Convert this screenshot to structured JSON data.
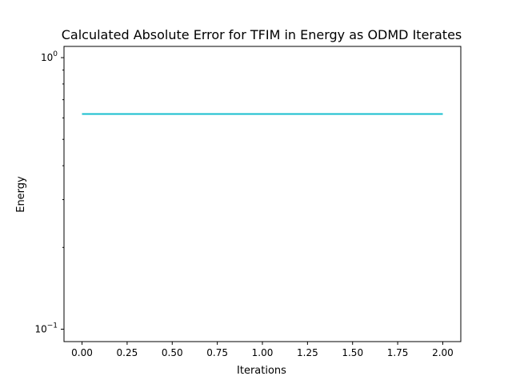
{
  "chart_data": {
    "type": "line",
    "title": "Calculated Absolute Error for TFIM in Energy as ODMD Iterates",
    "xlabel": "Iterations",
    "ylabel": "Energy",
    "xlim": [
      -0.1,
      2.1
    ],
    "ylim": [
      0.09,
      1.1
    ],
    "yscale": "log",
    "grid": false,
    "x_ticks": [
      "0.00",
      "0.25",
      "0.50",
      "0.75",
      "1.00",
      "1.25",
      "1.50",
      "1.75",
      "2.00"
    ],
    "y_ticks": [
      {
        "value": 1.0,
        "base": "10",
        "exp": "0"
      },
      {
        "value": 0.1,
        "base": "10",
        "exp": "−1"
      }
    ],
    "series": [
      {
        "x": [
          0,
          1,
          2
        ],
        "y": [
          0.62,
          0.62,
          0.62
        ],
        "color": "#1f77b4"
      },
      {
        "x": [
          0,
          1,
          2
        ],
        "y": [
          0.62,
          0.62,
          0.62
        ],
        "color": "#ff7f0e"
      },
      {
        "x": [
          0,
          1,
          2
        ],
        "y": [
          0.62,
          0.62,
          0.62
        ],
        "color": "#2ca02c"
      },
      {
        "x": [
          0,
          1,
          2
        ],
        "y": [
          0.62,
          0.62,
          0.62
        ],
        "color": "#d62728"
      },
      {
        "x": [
          0,
          1,
          2
        ],
        "y": [
          0.62,
          0.62,
          0.62
        ],
        "color": "#9467bd"
      },
      {
        "x": [
          0,
          1,
          2
        ],
        "y": [
          0.62,
          0.62,
          0.62
        ],
        "color": "#8c564b"
      },
      {
        "x": [
          0,
          1,
          2
        ],
        "y": [
          0.62,
          0.62,
          0.62
        ],
        "color": "#e377c2"
      },
      {
        "x": [
          0,
          1,
          2
        ],
        "y": [
          0.62,
          0.62,
          0.62
        ],
        "color": "#7f7f7f"
      },
      {
        "x": [
          0,
          1,
          2
        ],
        "y": [
          0.62,
          0.62,
          0.62
        ],
        "color": "#bcbd22"
      },
      {
        "x": [
          0,
          1,
          2
        ],
        "y": [
          0.62,
          0.62,
          0.62
        ],
        "color": "#17becf"
      }
    ]
  }
}
